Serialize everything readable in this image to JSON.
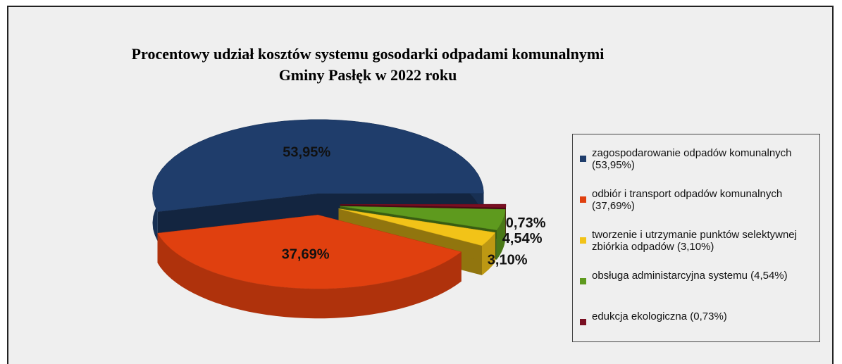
{
  "chart_data": {
    "type": "pie3d",
    "title": "Procentowy udział kosztów systemu gosodarki odpadami komunalnymi Gminy Pasłęk w 2022 roku",
    "series": [
      {
        "name": "zagospodarowanie odpadów komunalnych (53,95%)",
        "color": "#1f3d6b",
        "value": 53.95,
        "value_label": "53,95%"
      },
      {
        "name": "odbiór i transport odpadów komunalnych (37,69%)",
        "color": "#e0400f",
        "value": 37.69,
        "value_label": "37,69%"
      },
      {
        "name": "tworzenie i utrzymanie punktów selektywnej zbiórkia odpadów (3,10%)",
        "color": "#f2c318",
        "value": 3.1,
        "value_label": "3,10%"
      },
      {
        "name": "obsługa administarcyjna systemu (4,54%)",
        "color": "#5e9a1e",
        "value": 4.54,
        "value_label": "4,54%"
      },
      {
        "name": "edukcja ekologiczna (0,73%)",
        "color": "#7a0f22",
        "value": 0.73,
        "value_label": "0,73%"
      }
    ],
    "legend": "right"
  }
}
